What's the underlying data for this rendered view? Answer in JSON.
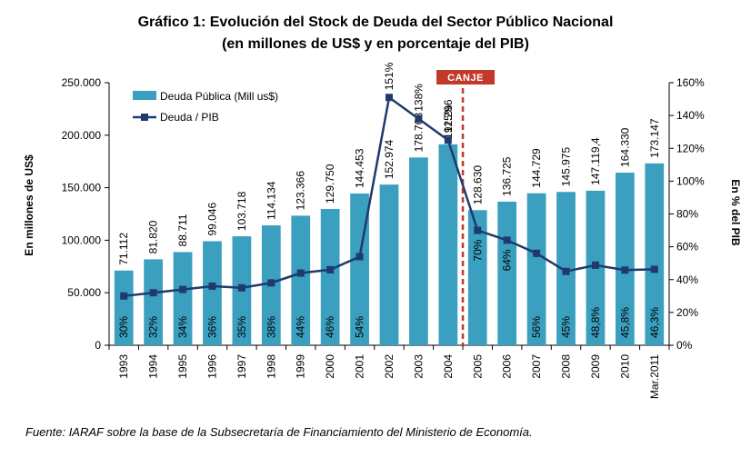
{
  "chart_data": {
    "type": "bar",
    "title": "Gráfico 1: Evolución del Stock de Deuda del Sector Público Nacional",
    "subtitle": "(en millones de US$ y en porcentaje del PIB)",
    "ylabel": "En millones de US$",
    "y2label": "En % del PIB",
    "ylim": [
      0,
      250000
    ],
    "y2lim": [
      0,
      160
    ],
    "y_ticks": [
      "0",
      "50.000",
      "100.000",
      "150.000",
      "200.000",
      "250.000"
    ],
    "y2_ticks": [
      "0%",
      "20%",
      "40%",
      "60%",
      "80%",
      "100%",
      "120%",
      "140%",
      "160%"
    ],
    "categories": [
      "1993",
      "1994",
      "1995",
      "1996",
      "1997",
      "1998",
      "1999",
      "2000",
      "2001",
      "2002",
      "2003",
      "2004",
      "2005",
      "2006",
      "2007",
      "2008",
      "2009",
      "2010",
      "Mar.2011"
    ],
    "series": [
      {
        "name": "Deuda Pública (Mill us$)",
        "type": "bar",
        "axis": "left",
        "color": "#3b9fbf",
        "values": [
          71112,
          81820,
          88711,
          99046,
          103718,
          114134,
          123366,
          129750,
          144453,
          152974,
          178768,
          191296,
          128630,
          136725,
          144729,
          145975,
          147119.4,
          164330,
          173147
        ],
        "labels": [
          "71.112",
          "81.820",
          "88.711",
          "99.046",
          "103.718",
          "114.134",
          "123.366",
          "129.750",
          "144.453",
          "152.974",
          "178.768",
          "191.296",
          "128.630",
          "136.725",
          "144.729",
          "145.975",
          "147.119,4",
          "164.330",
          "173.147"
        ]
      },
      {
        "name": "Deuda / PIB",
        "type": "line",
        "axis": "right",
        "color": "#1f3a6e",
        "values": [
          30,
          32,
          34,
          36,
          35,
          38,
          44,
          46,
          54,
          151,
          138,
          125,
          70,
          64,
          56,
          45,
          48.8,
          45.8,
          46.3
        ],
        "labels": [
          "30%",
          "32%",
          "34%",
          "36%",
          "35%",
          "38%",
          "44%",
          "46%",
          "54%",
          "151%",
          "138%",
          "125%",
          "70%",
          "64%",
          "56%",
          "45%",
          "48,8%",
          "45,8%",
          "46,3%"
        ]
      }
    ],
    "annotation": {
      "label": "CANJE",
      "between": [
        "2004",
        "2005"
      ],
      "color": "#c0392b"
    },
    "legend": "top-left",
    "grid": false
  },
  "source": "Fuente: IARAF sobre la base de la Subsecretaría de Financiamiento del Ministerio de Economía."
}
